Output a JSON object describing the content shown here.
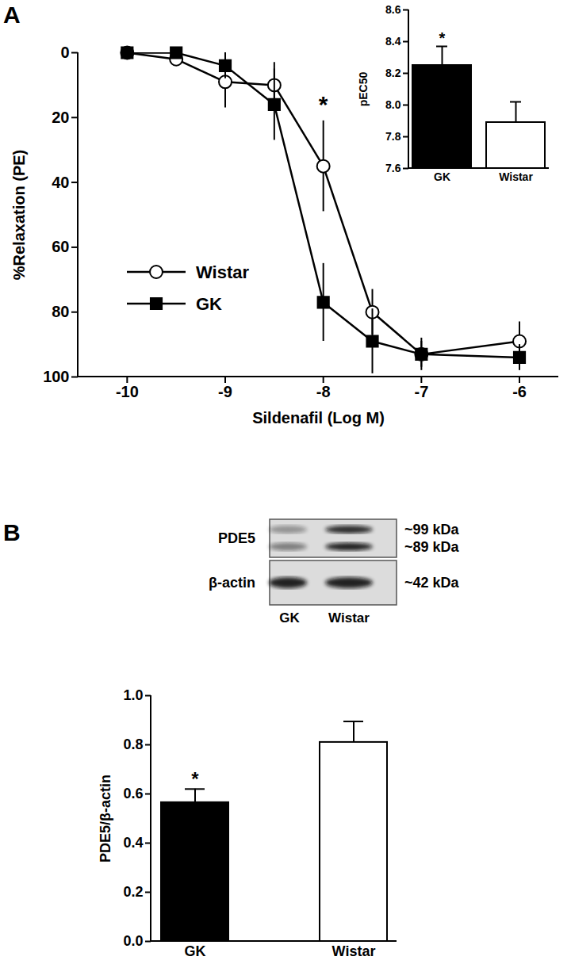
{
  "panel_labels": [
    "A",
    "B"
  ],
  "chart_data": [
    {
      "type": "line",
      "x_label": "Sildenafil (Log M)",
      "y_label": "%Relaxation (PE)",
      "x": [
        -10,
        -9.5,
        -9,
        -8.5,
        -8,
        -7.5,
        -7,
        -6
      ],
      "series": [
        {
          "name": "Wistar",
          "color": "#000000",
          "marker": "circle-open",
          "values": [
            0,
            2,
            9,
            10,
            35,
            80,
            93,
            89
          ],
          "errors": [
            0,
            1,
            8,
            7,
            14,
            7,
            4,
            6
          ]
        },
        {
          "name": "GK",
          "color": "#000000",
          "marker": "square",
          "values": [
            0,
            0,
            4,
            16,
            77,
            89,
            93,
            94
          ],
          "errors": [
            0,
            0,
            4,
            11,
            12,
            10,
            5,
            4
          ]
        }
      ],
      "xlim": [
        -10.5,
        -5.6
      ],
      "xticks": [
        -10,
        -9,
        -8,
        -7,
        -6
      ],
      "ylim": [
        100,
        0
      ],
      "yticks": [
        0,
        20,
        40,
        60,
        80,
        100
      ],
      "legend": "left",
      "annotations": [
        {
          "x": -8,
          "y": 16,
          "text": "*"
        }
      ]
    },
    {
      "type": "bar",
      "y_label": "pEC50",
      "categories": [
        "GK",
        "Wistar"
      ],
      "values": [
        8.25,
        7.89
      ],
      "errors": [
        0.12,
        0.13
      ],
      "colors": [
        "#000000",
        "#ffffff"
      ],
      "ylim": [
        7.6,
        8.6
      ],
      "yticks": [
        7.6,
        7.8,
        {
          "value": 8,
          "label": "8.0"
        },
        8.2,
        8.4,
        8.6
      ],
      "annotations": [
        {
          "x": "GK",
          "y": 8.42,
          "text": "*"
        }
      ]
    },
    {
      "type": "bar",
      "y_label": "PDE5/β-actin",
      "categories": [
        "GK",
        "Wistar"
      ],
      "values": [
        0.565,
        0.81
      ],
      "errors": [
        0.055,
        0.085
      ],
      "colors": [
        "#000000",
        "#ffffff"
      ],
      "ylim": [
        0,
        1
      ],
      "yticks": [
        {
          "value": 0,
          "label": "0.0"
        },
        0.2,
        0.4,
        0.6,
        0.8,
        {
          "value": 1,
          "label": "1.0"
        }
      ],
      "annotations": [
        {
          "x": "GK",
          "y": 0.66,
          "text": "*"
        }
      ]
    }
  ],
  "blot": {
    "rows": [
      {
        "label": "PDE5",
        "bands": [
          "~99 kDa",
          "~89 kDa"
        ]
      },
      {
        "label": "β-actin",
        "bands": [
          "~42 kDa"
        ]
      }
    ],
    "lanes": [
      "GK",
      "Wistar"
    ]
  }
}
